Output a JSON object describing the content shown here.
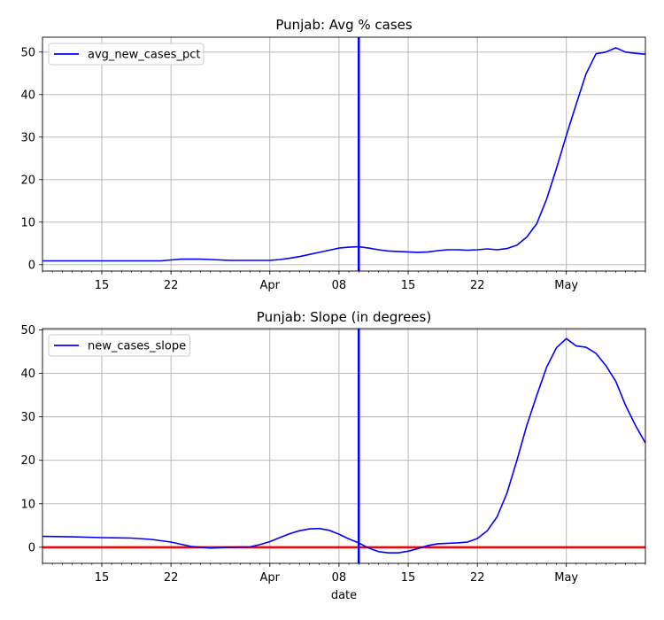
{
  "chart_data": [
    {
      "type": "line",
      "title": "Punjab: Avg % cases",
      "xlabel": "",
      "ylabel": "",
      "x_range": [
        "2020-03-09",
        "2020-05-09"
      ],
      "ylim": [
        -1.5,
        53.5
      ],
      "x_ticks": [
        {
          "date": "2020-03-15",
          "label": "15"
        },
        {
          "date": "2020-03-22",
          "label": "22"
        },
        {
          "date": "2020-04-01",
          "label": "Apr"
        },
        {
          "date": "2020-04-08",
          "label": "08"
        },
        {
          "date": "2020-04-15",
          "label": "15"
        },
        {
          "date": "2020-04-22",
          "label": "22"
        },
        {
          "date": "2020-05-01",
          "label": "May"
        }
      ],
      "y_ticks": [
        0,
        10,
        20,
        30,
        40,
        50
      ],
      "grid": true,
      "legend": "top-left",
      "vline": {
        "date": "2020-04-10",
        "color": "#0000ff"
      },
      "series": [
        {
          "name": "avg_new_cases_pct",
          "color": "#0000ff",
          "x": [
            "2020-03-09",
            "2020-03-11",
            "2020-03-14",
            "2020-03-17",
            "2020-03-19",
            "2020-03-21",
            "2020-03-22",
            "2020-03-23",
            "2020-03-24",
            "2020-03-25",
            "2020-03-26",
            "2020-03-27",
            "2020-03-28",
            "2020-03-29",
            "2020-03-30",
            "2020-03-31",
            "2020-04-01",
            "2020-04-02",
            "2020-04-03",
            "2020-04-04",
            "2020-04-05",
            "2020-04-06",
            "2020-04-07",
            "2020-04-08",
            "2020-04-09",
            "2020-04-10",
            "2020-04-11",
            "2020-04-12",
            "2020-04-13",
            "2020-04-14",
            "2020-04-15",
            "2020-04-16",
            "2020-04-17",
            "2020-04-18",
            "2020-04-19",
            "2020-04-20",
            "2020-04-21",
            "2020-04-22",
            "2020-04-23",
            "2020-04-24",
            "2020-04-25",
            "2020-04-26",
            "2020-04-27",
            "2020-04-28",
            "2020-04-29",
            "2020-04-30",
            "2020-05-01",
            "2020-05-02",
            "2020-05-03",
            "2020-05-04",
            "2020-05-05",
            "2020-05-06",
            "2020-05-07",
            "2020-05-08",
            "2020-05-09"
          ],
          "values": [
            0.9,
            0.9,
            0.9,
            0.9,
            0.9,
            0.9,
            1.1,
            1.3,
            1.3,
            1.3,
            1.2,
            1.1,
            1.0,
            1.0,
            1.0,
            1.0,
            1.0,
            1.2,
            1.5,
            1.9,
            2.4,
            2.9,
            3.4,
            3.9,
            4.1,
            4.2,
            3.9,
            3.5,
            3.2,
            3.1,
            3.0,
            2.9,
            3.0,
            3.3,
            3.5,
            3.5,
            3.4,
            3.5,
            3.7,
            3.5,
            3.8,
            4.6,
            6.5,
            9.6,
            15.4,
            22.6,
            30.4,
            37.8,
            44.9,
            49.6,
            50.0,
            51.0,
            50.0,
            49.7,
            49.5
          ]
        }
      ]
    },
    {
      "type": "line",
      "title": "Punjab: Slope (in degrees)",
      "xlabel": "date",
      "ylabel": "",
      "x_range": [
        "2020-03-09",
        "2020-05-09"
      ],
      "ylim": [
        -3.7,
        50.3
      ],
      "x_ticks": [
        {
          "date": "2020-03-15",
          "label": "15"
        },
        {
          "date": "2020-03-22",
          "label": "22"
        },
        {
          "date": "2020-04-01",
          "label": "Apr"
        },
        {
          "date": "2020-04-08",
          "label": "08"
        },
        {
          "date": "2020-04-15",
          "label": "15"
        },
        {
          "date": "2020-04-22",
          "label": "22"
        },
        {
          "date": "2020-05-01",
          "label": "May"
        }
      ],
      "y_ticks": [
        0,
        10,
        20,
        30,
        40,
        50
      ],
      "grid": true,
      "legend": "top-left",
      "vline": {
        "date": "2020-04-10",
        "color": "#0000ff"
      },
      "hline": {
        "value": 0,
        "color": "#ff0000"
      },
      "series": [
        {
          "name": "new_cases_slope",
          "color": "#0000ff",
          "x": [
            "2020-03-09",
            "2020-03-12",
            "2020-03-15",
            "2020-03-18",
            "2020-03-20",
            "2020-03-22",
            "2020-03-24",
            "2020-03-26",
            "2020-03-28",
            "2020-03-30",
            "2020-03-31",
            "2020-04-01",
            "2020-04-02",
            "2020-04-03",
            "2020-04-04",
            "2020-04-05",
            "2020-04-06",
            "2020-04-07",
            "2020-04-08",
            "2020-04-09",
            "2020-04-10",
            "2020-04-11",
            "2020-04-12",
            "2020-04-13",
            "2020-04-14",
            "2020-04-15",
            "2020-04-16",
            "2020-04-17",
            "2020-04-18",
            "2020-04-19",
            "2020-04-20",
            "2020-04-21",
            "2020-04-22",
            "2020-04-23",
            "2020-04-24",
            "2020-04-25",
            "2020-04-26",
            "2020-04-27",
            "2020-04-28",
            "2020-04-29",
            "2020-04-30",
            "2020-05-01",
            "2020-05-02",
            "2020-05-03",
            "2020-05-04",
            "2020-05-05",
            "2020-05-06",
            "2020-05-07",
            "2020-05-08",
            "2020-05-09"
          ],
          "values": [
            2.5,
            2.4,
            2.2,
            2.1,
            1.8,
            1.2,
            0.2,
            -0.2,
            0.0,
            0.1,
            0.6,
            1.3,
            2.2,
            3.1,
            3.8,
            4.2,
            4.3,
            3.9,
            3.0,
            1.9,
            1.0,
            -0.2,
            -1.0,
            -1.3,
            -1.3,
            -0.9,
            -0.3,
            0.4,
            0.8,
            0.9,
            1.0,
            1.2,
            2.0,
            3.8,
            7.0,
            12.5,
            20.0,
            28.0,
            34.9,
            41.4,
            45.9,
            48.0,
            46.3,
            46.0,
            44.6,
            41.8,
            38.2,
            32.6,
            28.0,
            24.0
          ]
        }
      ]
    }
  ]
}
